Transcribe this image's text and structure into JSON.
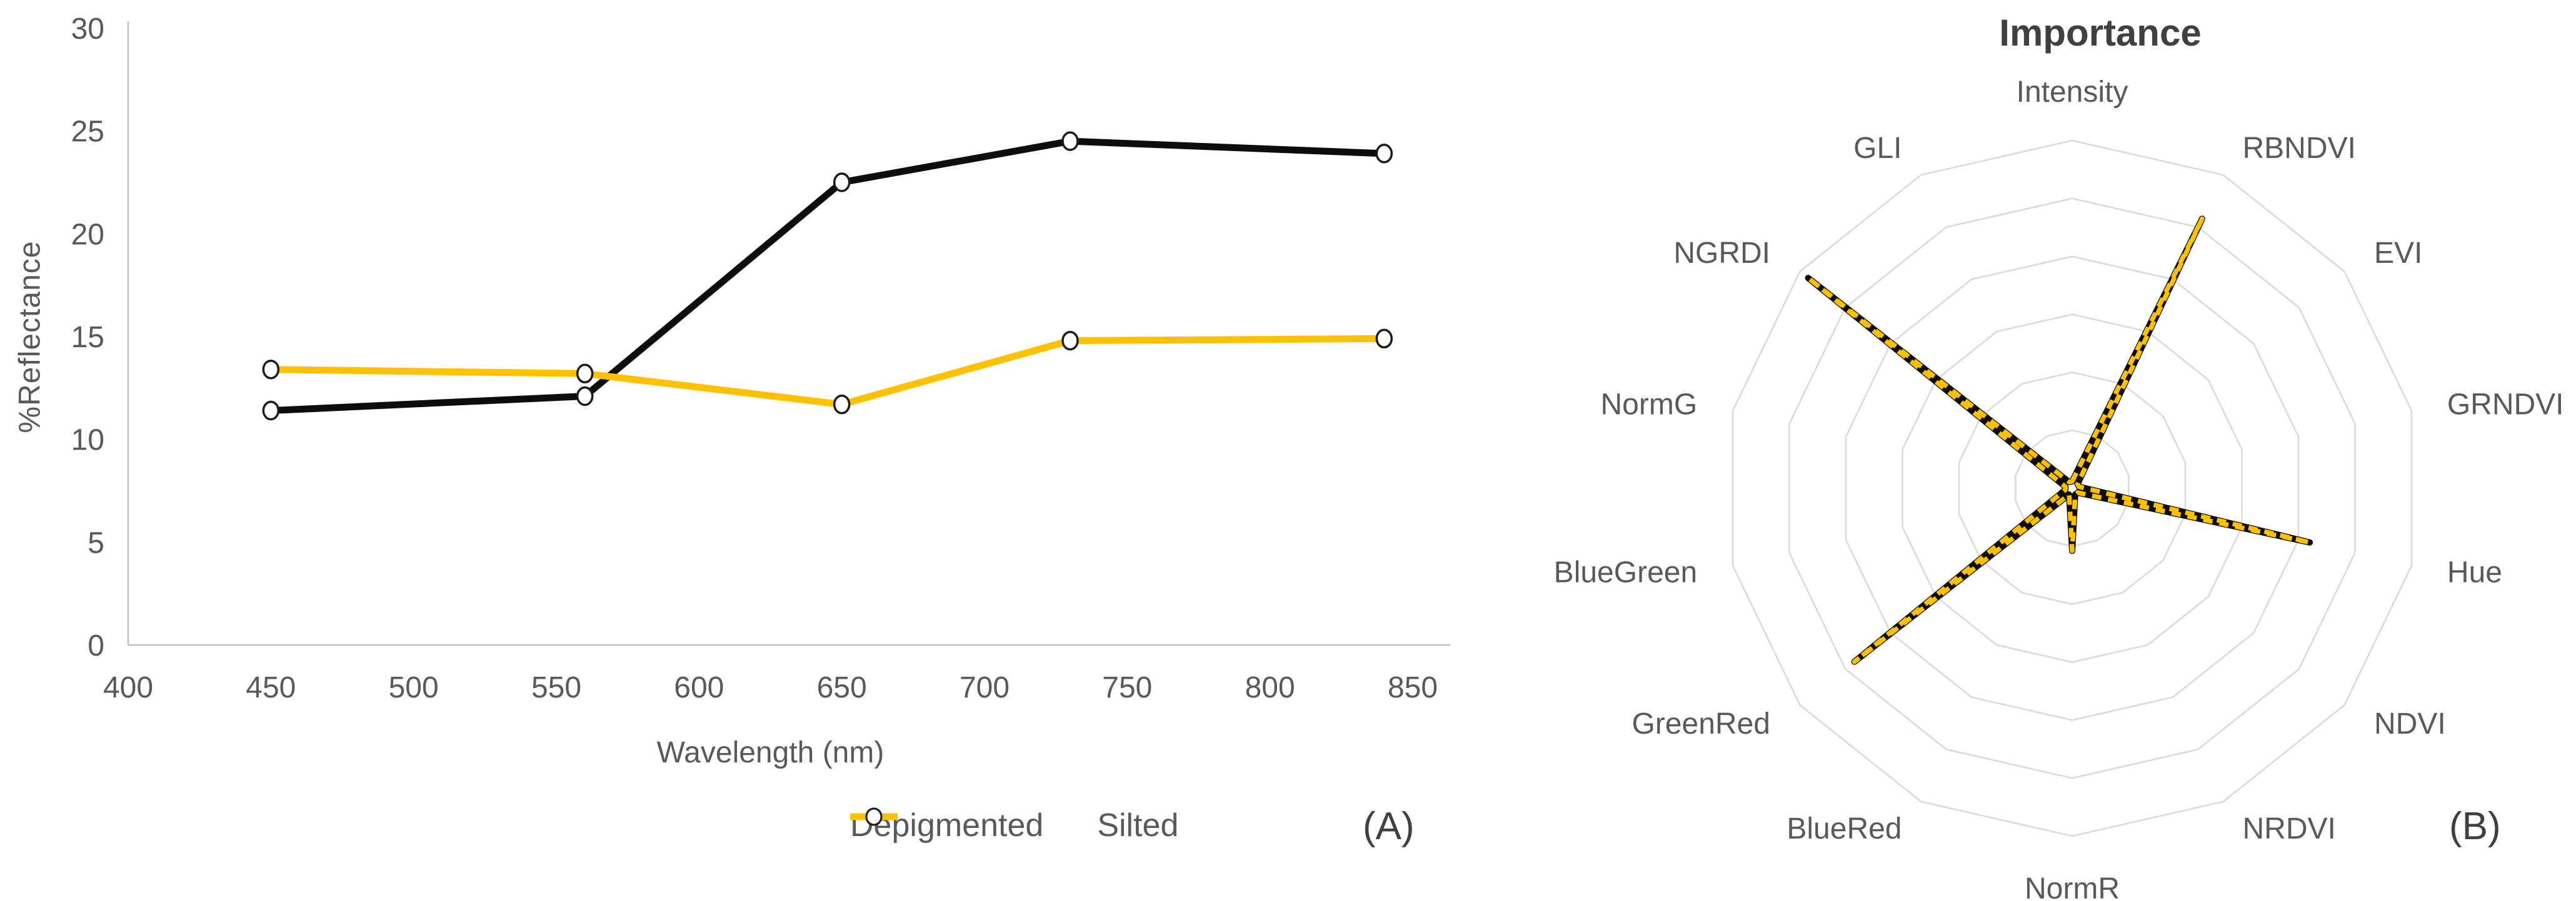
{
  "colors": {
    "depigmented": "#0d0d0d",
    "silted": "#FFC000",
    "axis_line": "#bfbfbf",
    "grid_line": "#d9d9d9",
    "text": "#595959",
    "title_text": "#404040",
    "marker_fill": "#ffffff",
    "marker_stroke": "#1a1a1a"
  },
  "chart_data": [
    {
      "id": "reflectance-spectra",
      "type": "line",
      "panel_label": "(A)",
      "xlabel": "Wavelength (nm)",
      "ylabel": "%Reflectance",
      "xlim": [
        400,
        850
      ],
      "ylim": [
        0,
        30
      ],
      "x_ticks": [
        400,
        450,
        500,
        550,
        600,
        650,
        700,
        750,
        800,
        850
      ],
      "y_ticks": [
        0,
        5,
        10,
        15,
        20,
        25,
        30
      ],
      "grid": false,
      "marker": "open-circle",
      "legend_position": "bottom",
      "x": [
        450,
        560,
        650,
        730,
        840
      ],
      "series": [
        {
          "name": "Depigmented",
          "color": "#0d0d0d",
          "style": "solid",
          "values": [
            11.4,
            12.1,
            22.5,
            24.5,
            23.9
          ]
        },
        {
          "name": "Silted",
          "color": "#FFC000",
          "style": "solid",
          "values": [
            13.4,
            13.2,
            11.7,
            14.8,
            14.9
          ]
        }
      ]
    },
    {
      "id": "feature-importance",
      "type": "radar",
      "panel_label": "(B)",
      "title": "Importance",
      "rings": 6,
      "rmax": 1.0,
      "grid": true,
      "categories": [
        "Intensity",
        "RBNDVI",
        "EVI",
        "GRNDVI",
        "Hue",
        "NDVI",
        "NRDVI",
        "NormR",
        "BlueRed",
        "GreenRed",
        "BlueGreen",
        "NormG",
        "NGRDI",
        "GLI"
      ],
      "series": [
        {
          "name": "Depigmented",
          "color": "#0d0d0d",
          "style": "solid",
          "values": [
            0.02,
            0.86,
            0.02,
            0.02,
            0.7,
            0.02,
            0.02,
            0.18,
            0.02,
            0.8,
            0.02,
            0.02,
            0.97,
            0.02
          ]
        },
        {
          "name": "Silted",
          "color": "#FFC000",
          "style": "dashed",
          "values": [
            0.02,
            0.86,
            0.02,
            0.02,
            0.7,
            0.02,
            0.02,
            0.18,
            0.02,
            0.8,
            0.02,
            0.02,
            0.97,
            0.02
          ]
        }
      ]
    }
  ]
}
